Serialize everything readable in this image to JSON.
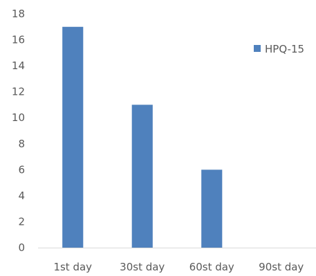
{
  "chart_data": {
    "type": "bar",
    "categories": [
      "1st day",
      "30st day",
      "60st day",
      "90st day"
    ],
    "series": [
      {
        "name": "HPQ-15",
        "values": [
          17,
          11,
          6,
          0
        ],
        "color": "#4f81bd"
      }
    ],
    "yticks": [
      "0",
      "2",
      "4",
      "6",
      "8",
      "10",
      "12",
      "14",
      "16",
      "18"
    ],
    "ylim": [
      0,
      18
    ],
    "grid": false,
    "legend_position": "top-right"
  }
}
